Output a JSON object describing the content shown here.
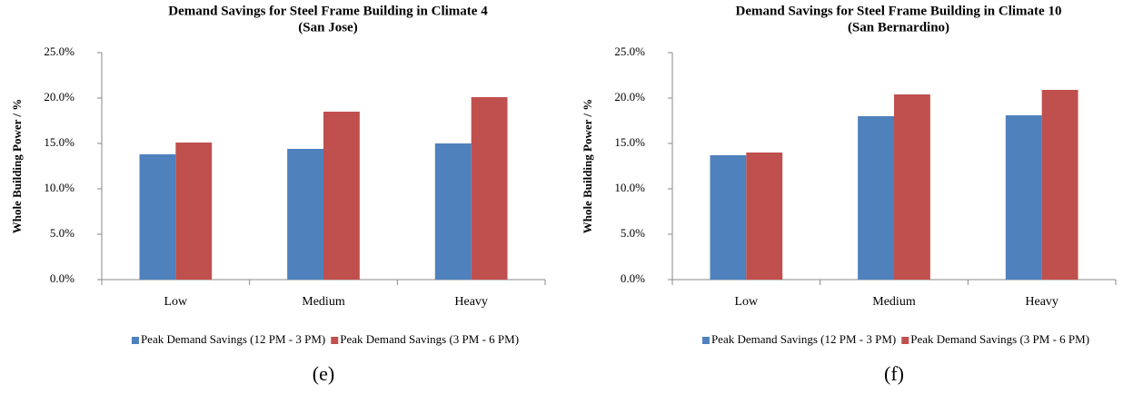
{
  "chart_data": [
    {
      "type": "bar",
      "title": "Demand Savings for Steel Frame Building in Climate 4",
      "subtitle": "(San Jose)",
      "y_label": "Whole Building Power / %",
      "categories": [
        "Low",
        "Medium",
        "Heavy"
      ],
      "series": [
        {
          "name": "Peak Demand Savings (12 PM - 3 PM)",
          "color": "#4f81bd",
          "values": [
            13.8,
            14.4,
            15.0
          ]
        },
        {
          "name": "Peak Demand Savings (3 PM - 6 PM)",
          "color": "#c0504d",
          "values": [
            15.1,
            18.5,
            20.1
          ]
        }
      ],
      "ylim": [
        0,
        25
      ],
      "yticks": [
        {
          "value": 0,
          "label": "0.0%"
        },
        {
          "value": 5,
          "label": "5.0%"
        },
        {
          "value": 10,
          "label": "10.0%"
        },
        {
          "value": 15,
          "label": "15.0%"
        },
        {
          "value": 20,
          "label": "20.0%"
        },
        {
          "value": 25,
          "label": "25.0%"
        }
      ],
      "grid": false,
      "legend": "bottom",
      "caption": "(e)"
    },
    {
      "type": "bar",
      "title": "Demand Savings for Steel Frame Building in Climate 10",
      "subtitle": "(San Bernardino)",
      "y_label": "Whole Building Power / %",
      "categories": [
        "Low",
        "Medium",
        "Heavy"
      ],
      "series": [
        {
          "name": "Peak Demand Savings (12 PM - 3 PM)",
          "color": "#4f81bd",
          "values": [
            13.7,
            18.0,
            18.1
          ]
        },
        {
          "name": "Peak Demand Savings (3 PM - 6 PM)",
          "color": "#c0504d",
          "values": [
            14.0,
            20.4,
            20.9
          ]
        }
      ],
      "ylim": [
        0,
        25
      ],
      "yticks": [
        {
          "value": 0,
          "label": "0.0%"
        },
        {
          "value": 5,
          "label": "5.0%"
        },
        {
          "value": 10,
          "label": "10.0%"
        },
        {
          "value": 15,
          "label": "15.0%"
        },
        {
          "value": 20,
          "label": "20.0%"
        },
        {
          "value": 25,
          "label": "25.0%"
        }
      ],
      "grid": false,
      "legend": "bottom",
      "caption": "(f)"
    }
  ]
}
